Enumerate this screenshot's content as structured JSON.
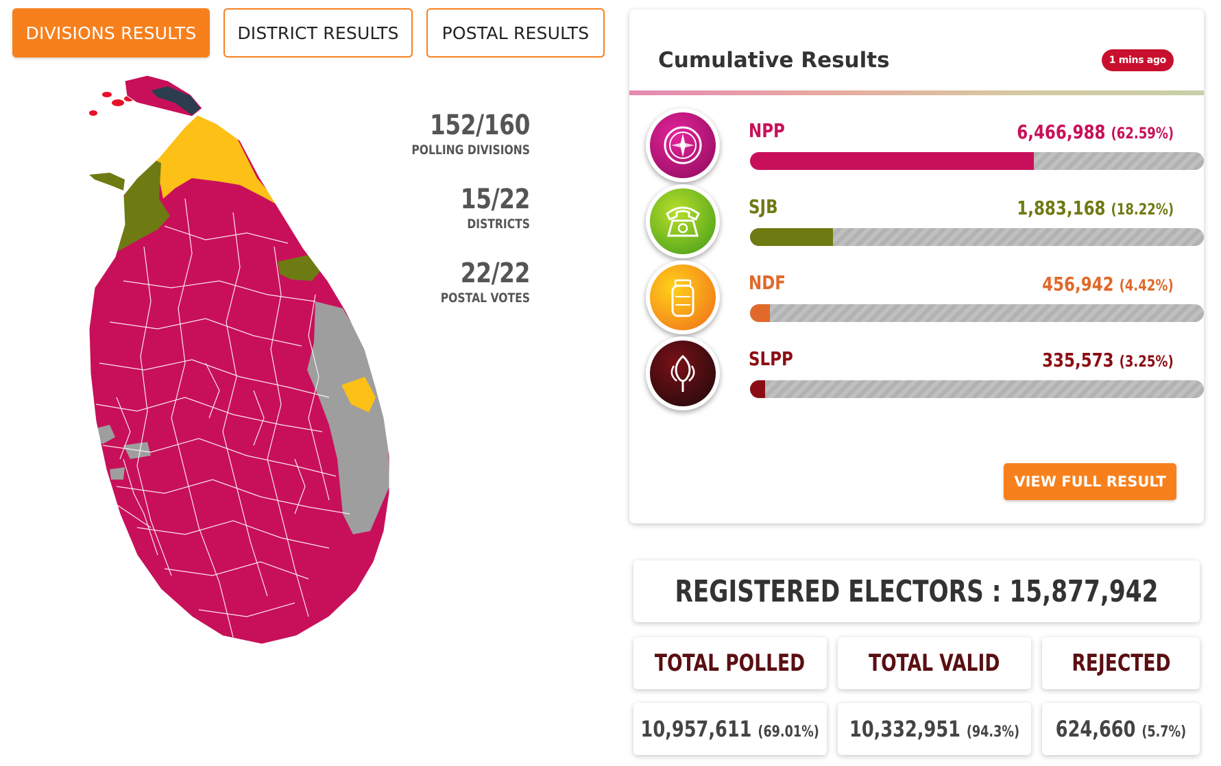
{
  "tabs": [
    {
      "label": "DIVISIONS RESULTS",
      "active": true
    },
    {
      "label": "DISTRICT RESULTS",
      "active": false
    },
    {
      "label": "POSTAL RESULTS",
      "active": false
    }
  ],
  "counts": [
    {
      "value": "152/160",
      "label": "POLLING DIVISIONS"
    },
    {
      "value": "15/22",
      "label": "DISTRICTS"
    },
    {
      "value": "22/22",
      "label": "POSTAL VOTES"
    }
  ],
  "cumulative": {
    "title": "Cumulative Results",
    "updated": "1 mins ago",
    "parties": [
      {
        "name": "NPP",
        "votes": "6,466,988",
        "percent": "(62.59%)",
        "share": 0.6259,
        "color": "#c8105a",
        "icon": "compass-icon"
      },
      {
        "name": "SJB",
        "votes": "1,883,168",
        "percent": "(18.22%)",
        "share": 0.1822,
        "color": "#6e7a12",
        "icon": "telephone-icon"
      },
      {
        "name": "NDF",
        "votes": "456,942",
        "percent": "(4.42%)",
        "share": 0.0442,
        "color": "#e0692a",
        "icon": "gas-cylinder-icon"
      },
      {
        "name": "SLPP",
        "votes": "335,573",
        "percent": "(3.25%)",
        "share": 0.0325,
        "color": "#8b0d14",
        "icon": "flower-bud-icon"
      }
    ],
    "view_button": "VIEW FULL RESULT"
  },
  "registered": {
    "text": "REGISTERED ELECTORS : 15,877,942"
  },
  "totals": [
    {
      "label": "TOTAL POLLED",
      "value": "10,957,611",
      "percent": "(69.01%)"
    },
    {
      "label": "TOTAL VALID",
      "value": "10,332,951",
      "percent": "(94.3%)"
    },
    {
      "label": "REJECTED",
      "value": "624,660",
      "percent": "(5.7%)"
    }
  ],
  "colors": {
    "accent": "#f7801d",
    "npp": "#c8105a",
    "sjb": "#6e7a12",
    "ndf": "#e0692a",
    "slpp": "#8b0d14",
    "tamil_region": "#fcc017",
    "pending": "#9e9e9e",
    "jaffna": "#2b3d4f"
  },
  "map": {
    "name": "sri-lanka-division-results-map"
  }
}
